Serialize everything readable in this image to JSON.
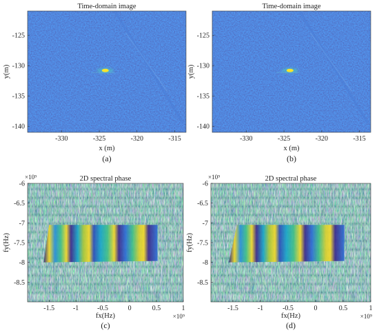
{
  "panels": [
    {
      "id": "a",
      "kind": "image",
      "title": "Time-domain image",
      "xlabel": "x (m)",
      "ylabel": "y(m)",
      "xticks": [
        "-330",
        "-325",
        "-320",
        "-315"
      ],
      "xtick_values": [
        -330,
        -325,
        -320,
        -315
      ],
      "yticks": [
        "-125",
        "-130",
        "-135",
        "-140"
      ],
      "ytick_values": [
        -125,
        -130,
        -135,
        -140
      ],
      "xlim": [
        -334.5,
        -313.5
      ],
      "ylim": [
        -121,
        -141
      ],
      "exponent": "",
      "caption": "(a)"
    },
    {
      "id": "b",
      "kind": "image",
      "title": "Time-domain image",
      "xlabel": "x (m)",
      "ylabel": "y(m)",
      "xticks": [
        "-330",
        "-325",
        "-320",
        "-315"
      ],
      "xtick_values": [
        -330,
        -325,
        -320,
        -315
      ],
      "yticks": [
        "-125",
        "-130",
        "-135",
        "-140"
      ],
      "ytick_values": [
        -125,
        -130,
        -135,
        -140
      ],
      "xlim": [
        -334.5,
        -313.5
      ],
      "ylim": [
        -121,
        -141
      ],
      "exponent": "",
      "caption": "(b)"
    },
    {
      "id": "c",
      "kind": "phase",
      "title": "2D spectral phase",
      "xlabel": "fx(Hz)",
      "ylabel": "fy(Hz)",
      "xticks": [
        "-1.5",
        "-1",
        "-0.5",
        "0",
        "0.5",
        "1"
      ],
      "xtick_values": [
        -1.5,
        -1,
        -0.5,
        0,
        0.5,
        1
      ],
      "yticks": [
        "-6",
        "-6.5",
        "-7",
        "-7.5",
        "-8",
        "-8.5"
      ],
      "ytick_values": [
        -6,
        -6.5,
        -7,
        -7.5,
        -8,
        -8.5
      ],
      "xlim": [
        -1.9,
        1.0
      ],
      "ylim": [
        -6,
        -9.0
      ],
      "exponent": "×10⁹",
      "y_exponent": "×10⁹",
      "caption": "(c)"
    },
    {
      "id": "d",
      "kind": "phase",
      "title": "2D spectral phase",
      "xlabel": "fx(Hz)",
      "ylabel": "fy(Hz)",
      "xticks": [
        "-1.5",
        "-1",
        "-0.5",
        "0",
        "0.5",
        "1"
      ],
      "xtick_values": [
        -1.5,
        -1,
        -0.5,
        0,
        0.5,
        1
      ],
      "yticks": [
        "-6",
        "-6.5",
        "-7",
        "-7.5",
        "-8",
        "-8.5"
      ],
      "ytick_values": [
        -6,
        -6.5,
        -7,
        -7.5,
        -8,
        -8.5
      ],
      "xlim": [
        -1.9,
        1.0
      ],
      "ylim": [
        -6,
        -9.0
      ],
      "exponent": "×10⁹",
      "y_exponent": "×10⁹",
      "caption": "(d)"
    }
  ],
  "colors": {
    "background": "#2a3fa6",
    "bright_target": "#f7e52c",
    "phase_palette": [
      "#3d2a8c",
      "#2e6fd6",
      "#1aa6c9",
      "#3fbf8a",
      "#a9c83a",
      "#f2d82b"
    ]
  }
}
